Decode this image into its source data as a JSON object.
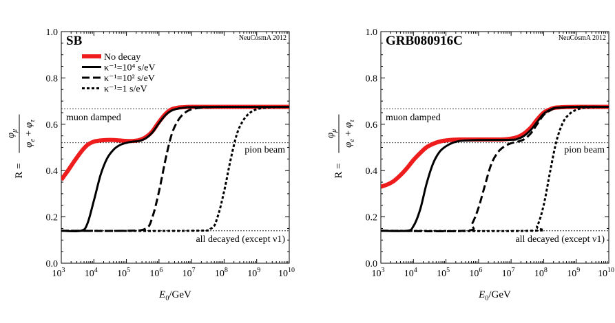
{
  "chart_data": [
    {
      "type": "line",
      "title": "SB",
      "stamp": "NeuCosmA 2012",
      "xlabel": "E0/GeV",
      "ylabel": "R = φμ / (φe + φτ)",
      "xscale": "log",
      "xlim": [
        1000,
        10000000000
      ],
      "ylim": [
        0.0,
        1.0
      ],
      "xticks": [
        "10³",
        "10⁴",
        "10⁵",
        "10⁶",
        "10⁷",
        "10⁸",
        "10⁹",
        "10¹⁰"
      ],
      "yticks": [
        "0.0",
        "0.2",
        "0.4",
        "0.6",
        "0.8",
        "1.0"
      ],
      "legend_position": "top-left",
      "reference_lines": [
        {
          "label": "muon damped",
          "y": 0.667
        },
        {
          "label": "pion beam",
          "y": 0.52
        },
        {
          "label": "all decayed (except ν1)",
          "y": 0.14
        }
      ],
      "series": [
        {
          "name": "No decay",
          "style": "solid-red-thick",
          "color": "#ee1c1c",
          "x": [
            1000,
            1600,
            2500,
            4000,
            6300,
            10000,
            16000,
            25000,
            40000,
            63000,
            100000,
            160000,
            250000,
            400000,
            630000,
            1000000,
            1600000,
            2500000,
            4000000,
            6300000,
            10000000,
            100000000,
            1000000000,
            10000000000
          ],
          "y": [
            0.36,
            0.4,
            0.44,
            0.48,
            0.51,
            0.525,
            0.53,
            0.532,
            0.532,
            0.53,
            0.528,
            0.528,
            0.532,
            0.545,
            0.57,
            0.61,
            0.645,
            0.665,
            0.672,
            0.674,
            0.675,
            0.675,
            0.675,
            0.675
          ]
        },
        {
          "name": "κ⁻¹=10⁴ s/eV",
          "style": "solid-black",
          "x": [
            1000,
            4000,
            6300,
            10000,
            16000,
            25000,
            40000,
            63000,
            100000,
            160000,
            250000,
            400000,
            630000,
            1000000,
            1600000,
            2500000,
            4000000,
            6300000,
            10000000,
            100000000,
            1000000000,
            10000000000
          ],
          "y": [
            0.14,
            0.14,
            0.17,
            0.27,
            0.38,
            0.45,
            0.49,
            0.51,
            0.52,
            0.525,
            0.528,
            0.54,
            0.565,
            0.605,
            0.64,
            0.66,
            0.668,
            0.672,
            0.674,
            0.675,
            0.675,
            0.675
          ]
        },
        {
          "name": "κ⁻¹=10² s/eV",
          "style": "dashed-black",
          "x": [
            1000,
            100000,
            400000,
            630000,
            1000000,
            1600000,
            2500000,
            4000000,
            6300000,
            10000000,
            16000000,
            25000000,
            100000000,
            1000000000,
            10000000000
          ],
          "y": [
            0.14,
            0.14,
            0.15,
            0.2,
            0.31,
            0.45,
            0.56,
            0.62,
            0.65,
            0.665,
            0.67,
            0.673,
            0.675,
            0.675,
            0.675
          ]
        },
        {
          "name": "κ⁻¹=1 s/eV",
          "style": "dotted-black",
          "x": [
            1000,
            10000000,
            40000000,
            63000000,
            100000000,
            160000000,
            250000000,
            400000000,
            630000000,
            1000000000,
            1600000000,
            2500000000,
            10000000000
          ],
          "y": [
            0.14,
            0.14,
            0.15,
            0.2,
            0.31,
            0.45,
            0.56,
            0.62,
            0.65,
            0.665,
            0.67,
            0.673,
            0.675
          ]
        }
      ]
    },
    {
      "type": "line",
      "title": "GRB080916C",
      "stamp": "NeuCosmA 2012",
      "xlabel": "E0/GeV",
      "ylabel": "R = φμ / (φe + φτ)",
      "xscale": "log",
      "xlim": [
        1000,
        10000000000
      ],
      "ylim": [
        0.0,
        1.0
      ],
      "xticks": [
        "10³",
        "10⁴",
        "10⁵",
        "10⁶",
        "10⁷",
        "10⁸",
        "10⁹",
        "10¹⁰"
      ],
      "yticks": [
        "0.0",
        "0.2",
        "0.4",
        "0.6",
        "0.8",
        "1.0"
      ],
      "reference_lines": [
        {
          "label": "muon damped",
          "y": 0.667
        },
        {
          "label": "pion beam",
          "y": 0.52
        },
        {
          "label": "all decayed (except ν1)",
          "y": 0.14
        }
      ],
      "series": [
        {
          "name": "No decay",
          "style": "solid-red-thick",
          "color": "#ee1c1c",
          "x": [
            1000,
            1600,
            2500,
            4000,
            6300,
            10000,
            16000,
            25000,
            40000,
            63000,
            100000,
            160000,
            250000,
            400000,
            630000,
            1000000,
            1600000,
            2500000,
            4000000,
            6300000,
            10000000,
            16000000,
            25000000,
            40000000,
            63000000,
            100000000,
            160000000,
            250000000,
            1000000000,
            10000000000
          ],
          "y": [
            0.33,
            0.34,
            0.355,
            0.38,
            0.41,
            0.445,
            0.475,
            0.5,
            0.515,
            0.525,
            0.53,
            0.533,
            0.534,
            0.534,
            0.534,
            0.534,
            0.534,
            0.534,
            0.534,
            0.535,
            0.538,
            0.545,
            0.56,
            0.585,
            0.62,
            0.65,
            0.665,
            0.672,
            0.675,
            0.675
          ]
        },
        {
          "name": "κ⁻¹=10⁴ s/eV",
          "style": "solid-black",
          "x": [
            1000,
            6300,
            10000,
            16000,
            25000,
            40000,
            63000,
            100000,
            160000,
            250000,
            400000,
            1000000,
            10000000,
            16000000,
            25000000,
            40000000,
            63000000,
            100000000,
            160000000,
            250000000,
            1000000000,
            10000000000
          ],
          "y": [
            0.14,
            0.14,
            0.16,
            0.23,
            0.34,
            0.43,
            0.48,
            0.505,
            0.52,
            0.527,
            0.53,
            0.532,
            0.533,
            0.537,
            0.55,
            0.575,
            0.61,
            0.645,
            0.663,
            0.671,
            0.675,
            0.675
          ]
        },
        {
          "name": "κ⁻¹=10² s/eV",
          "style": "dashed-black",
          "x": [
            1000,
            400000,
            630000,
            1000000,
            1600000,
            2500000,
            4000000,
            6300000,
            10000000,
            16000000,
            25000000,
            40000000,
            63000000,
            100000000,
            160000000,
            250000000,
            1000000000,
            10000000000
          ],
          "y": [
            0.14,
            0.14,
            0.17,
            0.24,
            0.34,
            0.43,
            0.48,
            0.505,
            0.518,
            0.525,
            0.535,
            0.56,
            0.6,
            0.64,
            0.66,
            0.67,
            0.675,
            0.675
          ]
        },
        {
          "name": "κ⁻¹=1 s/eV",
          "style": "dotted-black",
          "x": [
            1000,
            40000000,
            63000000,
            100000000,
            160000000,
            250000000,
            400000000,
            630000000,
            1000000000,
            1600000000,
            2500000000,
            10000000000
          ],
          "y": [
            0.14,
            0.14,
            0.16,
            0.25,
            0.4,
            0.53,
            0.61,
            0.645,
            0.662,
            0.67,
            0.673,
            0.675
          ]
        }
      ]
    }
  ]
}
